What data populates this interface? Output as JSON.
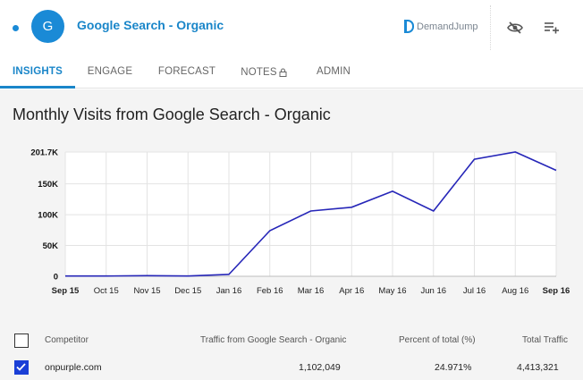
{
  "header": {
    "avatar_letter": "G",
    "title": "Google Search - Organic",
    "brand": "DemandJump"
  },
  "tabs": [
    {
      "label": "INSIGHTS",
      "active": true
    },
    {
      "label": "ENGAGE",
      "active": false
    },
    {
      "label": "FORECAST",
      "active": false
    },
    {
      "label": "NOTES",
      "active": false,
      "locked": true
    },
    {
      "label": "ADMIN",
      "active": false
    }
  ],
  "chart_title": "Monthly Visits from Google Search - Organic",
  "chart_data": {
    "type": "line",
    "title": "Monthly Visits from Google Search - Organic",
    "xlabel": "",
    "ylabel": "",
    "categories": [
      "Sep 15",
      "Oct 15",
      "Nov 15",
      "Dec 15",
      "Jan 16",
      "Feb 16",
      "Mar 16",
      "Apr 16",
      "May 16",
      "Jun 16",
      "Jul 16",
      "Aug 16",
      "Sep 16"
    ],
    "values": [
      500,
      500,
      1000,
      500,
      3000,
      74000,
      106000,
      112000,
      138000,
      106000,
      190000,
      201700,
      172000
    ],
    "ylim": [
      0,
      201700
    ],
    "yticks": [
      "0",
      "50K",
      "100K",
      "150K",
      "201.7K"
    ],
    "ytick_values": [
      0,
      50000,
      100000,
      150000,
      201700
    ],
    "grid": true,
    "line_color": "#2626b8"
  },
  "table": {
    "headers": {
      "competitor": "Competitor",
      "traffic": "Traffic from Google Search - Organic",
      "percent": "Percent of total (%)",
      "total": "Total Traffic"
    },
    "rows": [
      {
        "checked": true,
        "competitor": "onpurple.com",
        "traffic": "1,102,049",
        "percent": "24.971%",
        "total": "4,413,321"
      }
    ]
  }
}
